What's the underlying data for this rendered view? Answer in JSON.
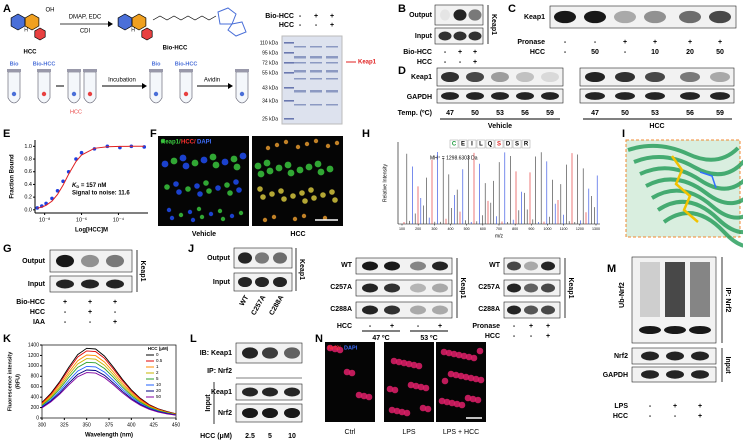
{
  "panels": {
    "A": {
      "label": "A",
      "hydroxyl": "OH",
      "hydrogens": [
        "H",
        "H"
      ],
      "reagents": [
        "DMAP, EDC",
        "CDI"
      ],
      "compound": "HCC",
      "probe": "Bio-HCC",
      "workflow": {
        "tubes": [
          "Bio",
          "Bio-HCC",
          "Bio",
          "Bio-HCC"
        ],
        "steps": [
          "Incubation",
          "Avidin"
        ],
        "competitor": "HCC"
      },
      "gel": {
        "rows": [
          {
            "name": "Bio-HCC",
            "signs": [
              "-",
              "+",
              "+"
            ]
          },
          {
            "name": "HCC",
            "signs": [
              "-",
              "-",
              "+"
            ]
          }
        ],
        "markers": [
          "110 kDa",
          "95 kDa",
          "72 kDa",
          "55 kDa",
          "43 kDa",
          "34 kDa",
          "25 kDa"
        ],
        "target": "Keap1"
      }
    },
    "B": {
      "label": "B",
      "blots": [
        "Output",
        "Input"
      ],
      "protein": "Keap1",
      "rows": [
        {
          "name": "Bio-HCC",
          "signs": [
            "-",
            "+",
            "+"
          ]
        },
        {
          "name": "HCC",
          "signs": [
            "-",
            "-",
            "+"
          ]
        }
      ]
    },
    "C": {
      "label": "C",
      "blots": [
        "Keap1"
      ],
      "rows": [
        {
          "name": "Pronase",
          "signs": [
            "-",
            "-",
            "+",
            "+",
            "+",
            "+"
          ]
        },
        {
          "name": "HCC",
          "signs": [
            "-",
            "50",
            "-",
            "10",
            "20",
            "50"
          ]
        }
      ]
    },
    "D": {
      "label": "D",
      "blots": [
        "Keap1",
        "GAPDH"
      ],
      "temp_label": "Temp. (ºC)",
      "temps": [
        47,
        50,
        53,
        56,
        59,
        47,
        50,
        53,
        56,
        59
      ],
      "groups": [
        "Vehicle",
        "HCC"
      ]
    },
    "F": {
      "label": "F",
      "stains": [
        "Keap1/",
        "HCC/",
        "DAPI"
      ],
      "groups": [
        "Vehicle",
        "HCC"
      ]
    },
    "G": {
      "label": "G",
      "blots": [
        "Output",
        "Input"
      ],
      "protein": "Keap1",
      "rows": [
        {
          "name": "Bio-HCC",
          "signs": [
            "+",
            "+",
            "+"
          ]
        },
        {
          "name": "HCC",
          "signs": [
            "-",
            "+",
            "-"
          ]
        },
        {
          "name": "IAA",
          "signs": [
            "-",
            "-",
            "+"
          ]
        }
      ]
    },
    "H": {
      "label": "H",
      "peptide": [
        "C",
        "E",
        "I",
        "L",
        "Q",
        "S",
        "D",
        "S",
        "R"
      ],
      "mass": "MH⁺ = 1298.6303 Da",
      "ylabel": "Relative Intensity",
      "xlabel": "m/z",
      "xticks": [
        100,
        200,
        300,
        400,
        500,
        600,
        700,
        800,
        900,
        1000,
        1100,
        1200,
        1300
      ]
    },
    "I": {
      "label": "I"
    },
    "J": {
      "label": "J",
      "blots": [
        "Output",
        "Input"
      ],
      "protein": "Keap1",
      "lanes": [
        "WT",
        "C257A",
        "C288A"
      ]
    },
    "CETSA": {
      "blots": [
        "WT",
        "C257A",
        "C288A"
      ],
      "protein": "Keap1",
      "rows": [
        {
          "name": "HCC",
          "signs": [
            "-",
            "+",
            "-",
            "+"
          ]
        }
      ],
      "temps": [
        "47 ºC",
        "53 ºC"
      ]
    },
    "DARTS": {
      "blots": [
        "WT",
        "C257A",
        "C288A"
      ],
      "protein": "Keap1",
      "rows": [
        {
          "name": "Pronase",
          "signs": [
            "-",
            "+",
            "+"
          ]
        },
        {
          "name": "HCC",
          "signs": [
            "-",
            "-",
            "+"
          ]
        }
      ]
    },
    "L": {
      "label": "L",
      "blots": [
        "IB: Keap1",
        "IP: Nrf2",
        "Keap1",
        "Nrf2"
      ],
      "input": "Input",
      "dose_label": "HCC (μM)",
      "doses": [
        2.5,
        5,
        10
      ]
    },
    "M": {
      "label": "M",
      "smear": "Ub-Nrf2",
      "ip": "IP: Nrf2",
      "blots": [
        "Nrf2",
        "GAPDH"
      ],
      "input": "Input",
      "rows": [
        {
          "name": "LPS",
          "signs": [
            "-",
            "+",
            "+"
          ]
        },
        {
          "name": "HCC",
          "signs": [
            "-",
            "-",
            "+"
          ]
        }
      ]
    },
    "N": {
      "label": "N",
      "stains": [
        "Nrf2/",
        "DAPI"
      ],
      "groups": [
        "Ctrl",
        "LPS",
        "LPS + HCC"
      ]
    }
  },
  "chart_data": [
    {
      "type": "scatter",
      "panel": "E",
      "xlabel": "Log[HCC]M",
      "ylabel": "Fraction Bound",
      "log_x": true,
      "annotations": [
        {
          "symbol": "K",
          "subscript": "D",
          "text": " = 157 nM"
        },
        {
          "text": "Signal to noise: 11.6"
        }
      ],
      "xlim": [
        3e-09,
        0.004
      ],
      "ylim": [
        -0.05,
        1.1
      ],
      "xticks": [
        {
          "value": 1e-08,
          "label": "10⁻⁸"
        },
        {
          "value": 1e-06,
          "label": "10⁻⁶"
        },
        {
          "value": 0.0001,
          "label": "10⁻⁴"
        }
      ],
      "yticks": [
        {
          "value": 0,
          "label": "0.0"
        },
        {
          "value": 0.2,
          "label": "0.2"
        },
        {
          "value": 0.4,
          "label": "0.4"
        },
        {
          "value": 0.6,
          "label": "0.6"
        },
        {
          "value": 0.8,
          "label": "0.8"
        },
        {
          "value": 1,
          "label": "1.0"
        }
      ],
      "series": [
        {
          "style": "points",
          "color": "#1f3fe0",
          "x": [
            4e-09,
            7e-09,
            1.2e-08,
            2.5e-08,
            5e-08,
            1e-07,
            2e-07,
            5e-07,
            1e-06,
            5e-06,
            2.5e-05,
            0.00012,
            0.0005,
            0.0025
          ],
          "values": [
            0.03,
            0.06,
            0.1,
            0.18,
            0.3,
            0.45,
            0.6,
            0.8,
            0.9,
            0.96,
            1.0,
            0.98,
            1.0,
            0.99
          ]
        },
        {
          "style": "line",
          "color": "#e02020",
          "x": [
            4e-09,
            7e-09,
            1.2e-08,
            2.5e-08,
            5e-08,
            1e-07,
            2e-07,
            5e-07,
            1e-06,
            5e-06,
            2.5e-05,
            0.00012,
            0.0005,
            0.0025
          ],
          "values": [
            0.025,
            0.043,
            0.071,
            0.137,
            0.242,
            0.389,
            0.56,
            0.761,
            0.864,
            0.97,
            0.994,
            0.999,
            1.0,
            1.0
          ]
        }
      ]
    },
    {
      "type": "line",
      "panel": "K",
      "xlabel": "Wavelength (nm)",
      "ylabel": [
        "Fluorescence intensity",
        "(RFU)"
      ],
      "legend_title": "HCC (μM)",
      "legend": "upper right",
      "x": [
        300,
        310,
        320,
        330,
        340,
        350,
        360,
        370,
        380,
        390,
        400,
        410,
        420,
        430,
        440,
        450
      ],
      "xlim": [
        300,
        450
      ],
      "ylim": [
        0,
        1400
      ],
      "xticks": [
        300,
        325,
        350,
        375,
        400,
        425,
        450
      ],
      "yticks": [
        0,
        200,
        400,
        600,
        800,
        1000,
        1200,
        1400
      ],
      "series": [
        {
          "name": "0",
          "color": "#000000",
          "values": [
            297,
            473,
            702,
            972,
            1215,
            1337,
            1323,
            1188,
            972,
            743,
            540,
            378,
            257,
            176,
            122,
            81
          ]
        },
        {
          "name": "0.5",
          "color": "#e00000",
          "values": [
            286,
            455,
            676,
            936,
            1170,
            1287,
            1274,
            1144,
            936,
            715,
            520,
            364,
            247,
            169,
            117,
            78
          ]
        },
        {
          "name": "1",
          "color": "#ff8c00",
          "values": [
            268,
            427,
            634,
            878,
            1098,
            1208,
            1196,
            1074,
            878,
            671,
            488,
            342,
            232,
            159,
            110,
            73
          ]
        },
        {
          "name": "2",
          "color": "#c8b400",
          "values": [
            253,
            403,
            598,
            828,
            1035,
            1139,
            1127,
            1012,
            828,
            633,
            460,
            322,
            219,
            150,
            104,
            69
          ]
        },
        {
          "name": "5",
          "color": "#2ca02c",
          "values": [
            238,
            378,
            562,
            778,
            972,
            1069,
            1058,
            950,
            778,
            594,
            432,
            302,
            205,
            140,
            97,
            65
          ]
        },
        {
          "name": "10",
          "color": "#1f5fff",
          "values": [
            220,
            350,
            520,
            720,
            900,
            990,
            980,
            880,
            720,
            550,
            400,
            280,
            190,
            130,
            90,
            60
          ]
        },
        {
          "name": "20",
          "color": "#000080",
          "values": [
            205,
            326,
            484,
            670,
            837,
            921,
            911,
            818,
            670,
            512,
            372,
            260,
            177,
            121,
            84,
            56
          ]
        },
        {
          "name": "50",
          "color": "#8000a0",
          "values": [
            194,
            308,
            458,
            634,
            792,
            871,
            862,
            774,
            634,
            484,
            352,
            246,
            167,
            114,
            79,
            53
          ]
        }
      ]
    }
  ]
}
